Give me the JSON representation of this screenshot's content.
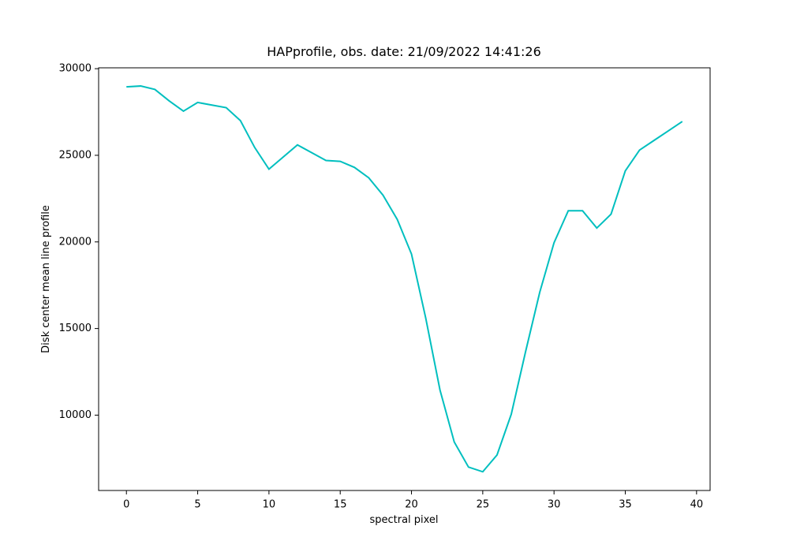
{
  "chart_data": {
    "type": "line",
    "title": "HAPprofile, obs. date: 21/09/2022 14:41:26",
    "x_label": "spectral pixel",
    "y_label": "Disk center mean line profile",
    "x": [
      0,
      1,
      2,
      3,
      4,
      5,
      6,
      7,
      8,
      9,
      10,
      11,
      12,
      13,
      14,
      15,
      16,
      17,
      18,
      19,
      20,
      21,
      22,
      23,
      24,
      25,
      26,
      27,
      28,
      29,
      30,
      31,
      32,
      33,
      34,
      35,
      36,
      37,
      38,
      39
    ],
    "series": [
      {
        "color": "#00bfbf",
        "values": [
          28950,
          29000,
          28800,
          28140,
          27550,
          28050,
          27900,
          27750,
          27000,
          25450,
          24200,
          24900,
          25600,
          25150,
          24700,
          24650,
          24300,
          23700,
          22700,
          21300,
          19300,
          15600,
          11450,
          8450,
          7000,
          6730,
          7700,
          10050,
          13650,
          17100,
          19950,
          21800,
          21800,
          20800,
          21600,
          24100,
          25300,
          25850,
          26400,
          26950
        ]
      }
    ],
    "xlim": [
      -1.95,
      40.95
    ],
    "ylim": [
      5650,
      30050
    ],
    "xticks": [
      0,
      5,
      10,
      15,
      20,
      25,
      30,
      35,
      40
    ],
    "yticks": [
      10000,
      15000,
      20000,
      25000,
      30000
    ],
    "grid": false
  }
}
